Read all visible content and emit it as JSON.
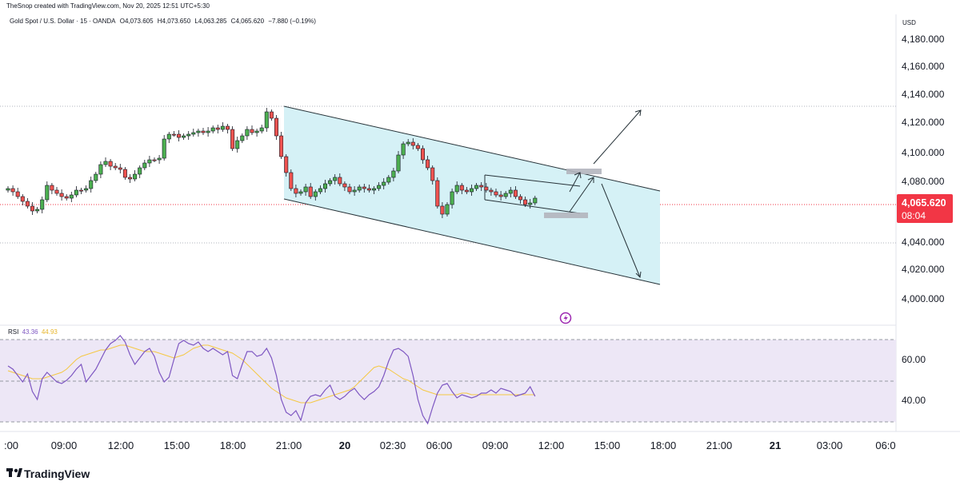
{
  "credit": "TheSnop created with TradingView.com, Nov 20, 2025 12:51 UTC+5:30",
  "symbol": {
    "name": "Gold Spot / U.S. Dollar · 15 · OANDA",
    "open": "O4,073.605",
    "high": "H4,073.650",
    "low": "L4,063.285",
    "close": "C4,065.620",
    "change": "−7.880 (−0.19%)"
  },
  "price_axis": {
    "currency": "USD",
    "labels": [
      "4,180.000",
      "4,160.000",
      "4,140.000",
      "4,120.000",
      "4,100.000",
      "4,080.000",
      "4,040.000",
      "4,020.000",
      "4,000.000"
    ]
  },
  "current_price": {
    "value": "4,065.620",
    "countdown": "08:04",
    "color": "#f23645"
  },
  "rsi": {
    "label": "RSI",
    "value1": "43.36",
    "value2": "44.93",
    "axis_labels": [
      "60.00",
      "40.00"
    ],
    "line_color": "#7e57c2",
    "ma_color": "#f5c842",
    "band_color": "#ede7f6"
  },
  "time_axis": {
    "labels": [
      ":00",
      "09:00",
      "12:00",
      "15:00",
      "18:00",
      "21:00",
      "20",
      "02:30",
      "06:00",
      "09:00",
      "12:00",
      "15:00",
      "18:00",
      "21:00",
      "21",
      "03:00",
      "06:0"
    ]
  },
  "colors": {
    "up": "#26a69a",
    "up_fill": "#4caf50",
    "down": "#ef5350",
    "channel_fill": "#d5f1f6"
  },
  "icons": {
    "lightning": "lightning-icon"
  },
  "logo": {
    "text": "TradingView"
  }
}
